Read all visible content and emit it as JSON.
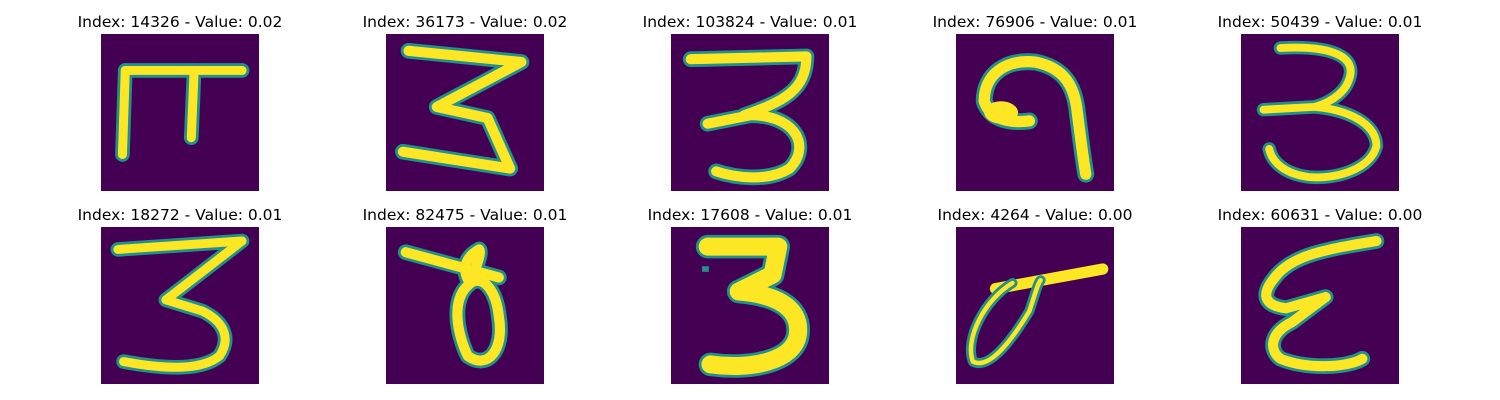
{
  "panels": [
    {
      "title": "Index: 14326 - Value: 0.02",
      "glyph": "pi"
    },
    {
      "title": "Index: 36173 - Value: 0.02",
      "glyph": "three-zigzag"
    },
    {
      "title": "Index: 103824 - Value: 0.01",
      "glyph": "three-rounded"
    },
    {
      "title": "Index: 76906 - Value: 0.01",
      "glyph": "nine-curl"
    },
    {
      "title": "Index: 50439 - Value: 0.01",
      "glyph": "three-open"
    },
    {
      "title": "Index: 18272 - Value: 0.01",
      "glyph": "three-flat-top"
    },
    {
      "title": "Index: 82475 - Value: 0.01",
      "glyph": "theta-loop"
    },
    {
      "title": "Index: 17608 - Value: 0.01",
      "glyph": "three-bold"
    },
    {
      "title": "Index: 4264 - Value: 0.00",
      "glyph": "loop-stroke"
    },
    {
      "title": "Index: 60631 - Value: 0.00",
      "glyph": "epsilon"
    }
  ],
  "colors": {
    "background": "#440154",
    "stroke_core": "#fde725",
    "stroke_edge": "#21918c"
  }
}
